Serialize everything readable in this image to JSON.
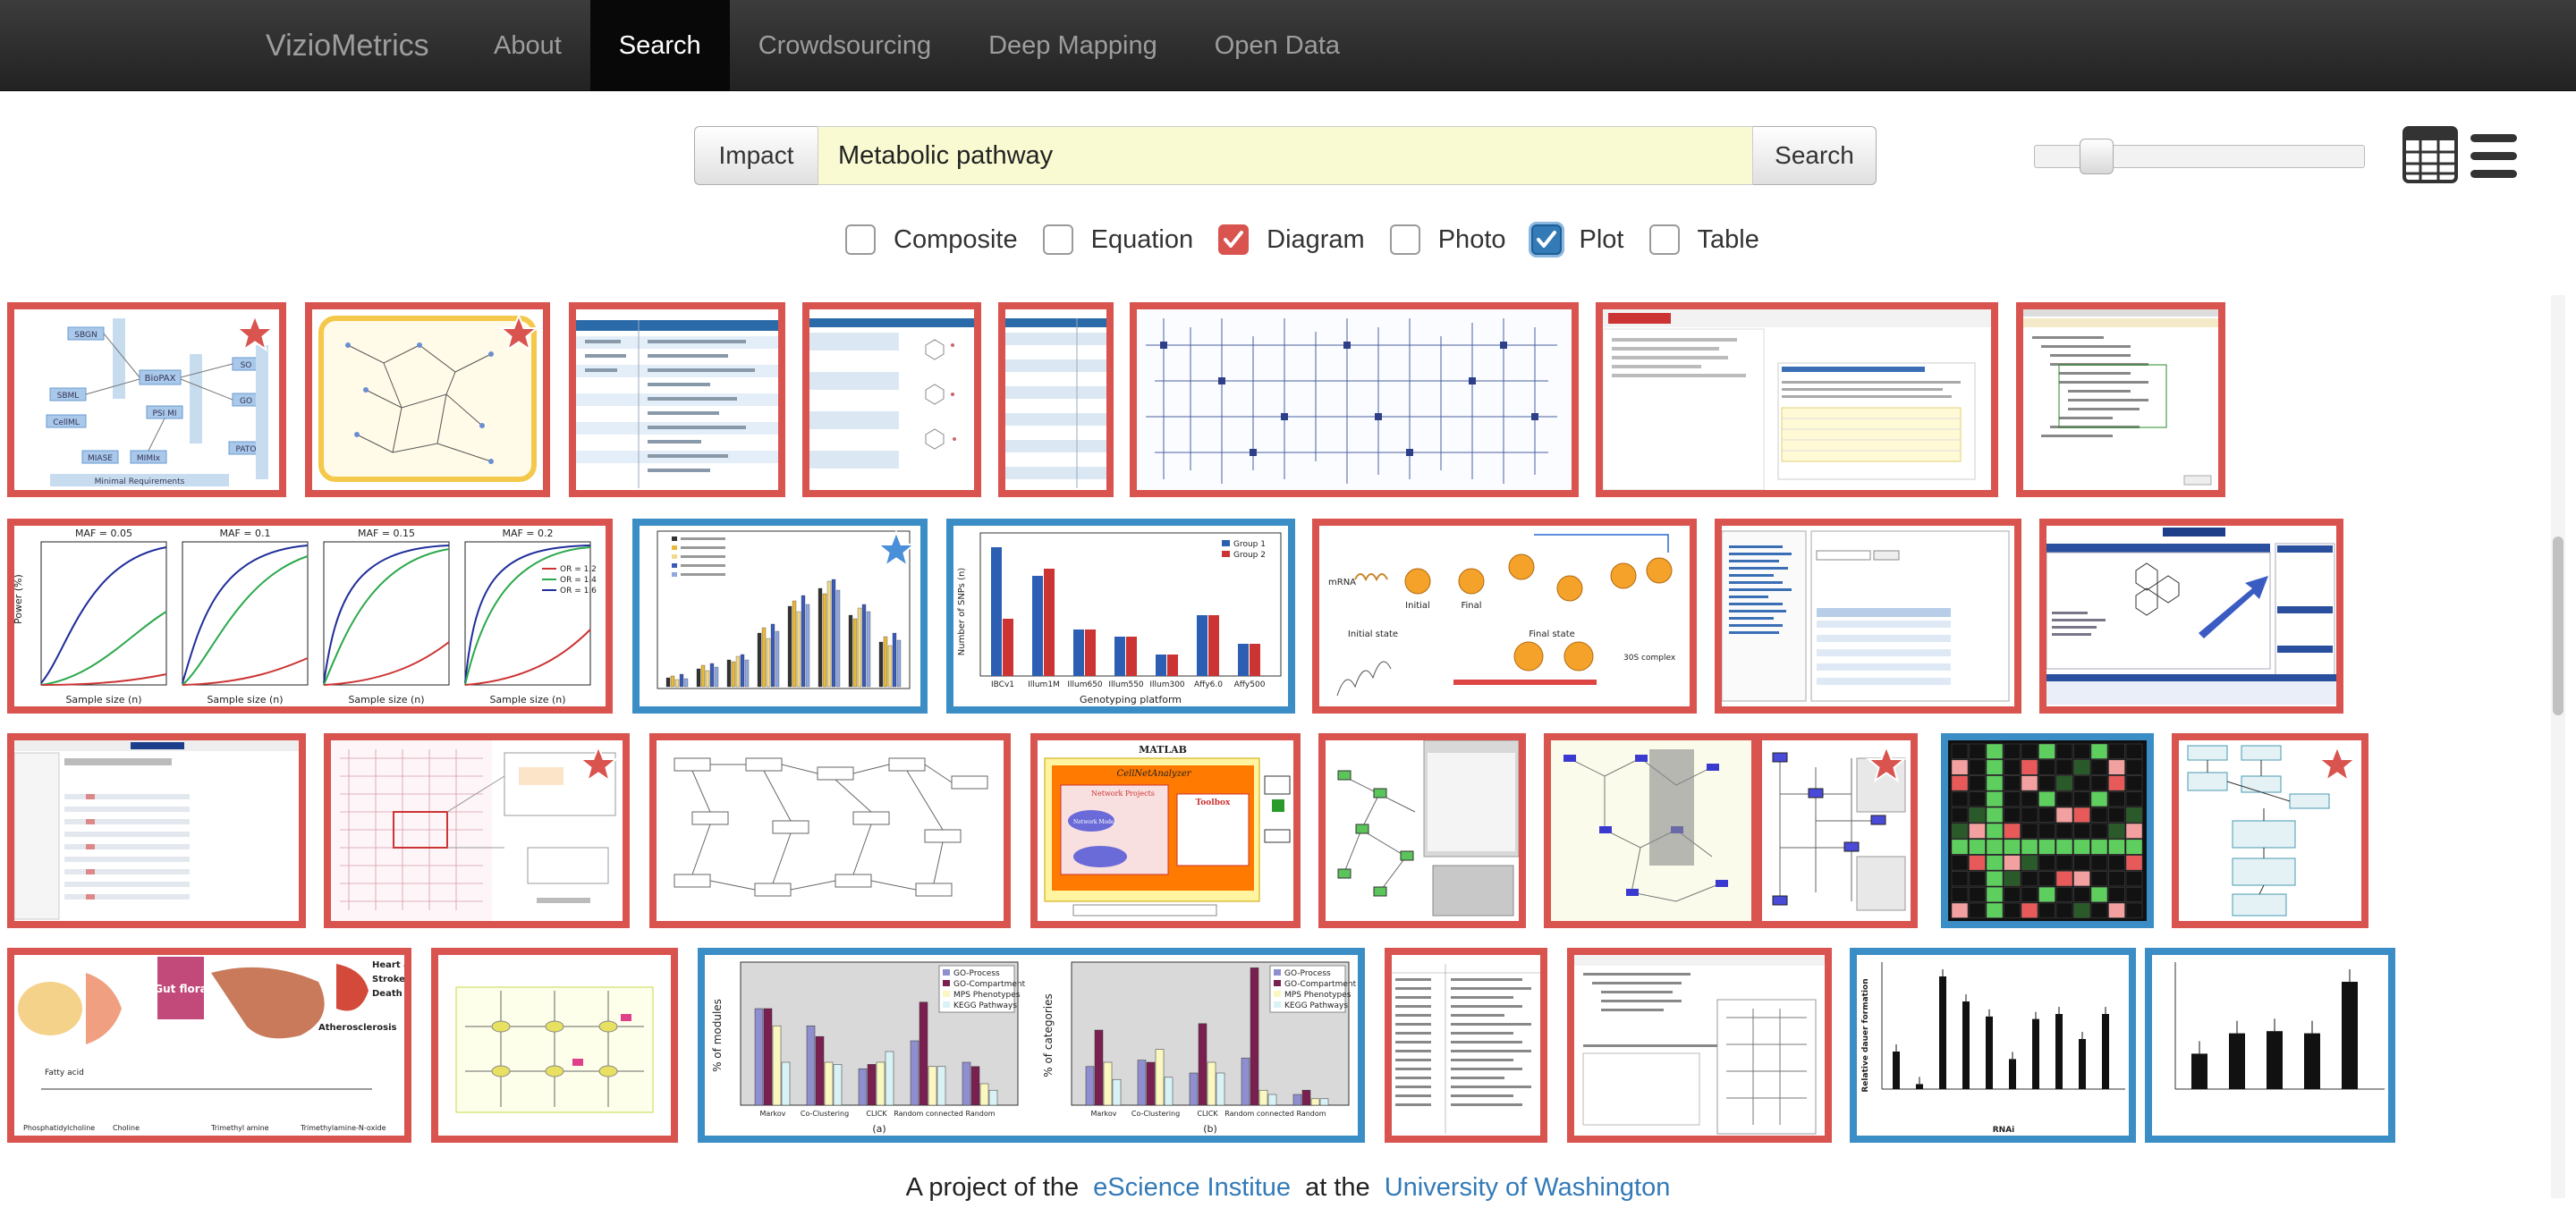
{
  "navbar": {
    "brand": "VizioMetrics",
    "items": [
      {
        "label": "About",
        "active": false
      },
      {
        "label": "Search",
        "active": true
      },
      {
        "label": "Crowdsourcing",
        "active": false
      },
      {
        "label": "Deep Mapping",
        "active": false
      },
      {
        "label": "Open Data",
        "active": false
      }
    ]
  },
  "search": {
    "impact_label": "Impact",
    "query": "Metabolic pathway",
    "search_label": "Search"
  },
  "size_slider": {
    "value": 0.15
  },
  "view_icons": [
    "grid-view-icon",
    "list-view-icon"
  ],
  "filters": [
    {
      "label": "Composite",
      "checked": false
    },
    {
      "label": "Equation",
      "checked": false
    },
    {
      "label": "Diagram",
      "checked": true,
      "color": "#d9534f"
    },
    {
      "label": "Photo",
      "checked": false
    },
    {
      "label": "Plot",
      "checked": true,
      "color": "#337ab7"
    },
    {
      "label": "Table",
      "checked": false
    }
  ],
  "colors": {
    "diagram": "#d9534f",
    "plot": "#3b8dc6",
    "star": "#d9534f",
    "star_blue": "#4a90d9"
  },
  "thumbnails": {
    "t1": {
      "labels": [
        "SBGN",
        "SBML",
        "CellML",
        "BioPAX",
        "PSI MI",
        "MIASE",
        "MIMIx",
        "SO",
        "GO",
        "PATO",
        "Minimal Requirements"
      ]
    },
    "t9": {
      "titles": [
        "MAF = 0.05",
        "MAF = 0.1",
        "MAF = 0.15",
        "MAF = 0.2"
      ],
      "ylabel": "Power (%)",
      "xlabel": "Sample size (n)",
      "legend": [
        "OR = 1.2",
        "OR = 1.4",
        "OR = 1.6"
      ]
    },
    "t11": {
      "ylabel": "Number of SNPs (n)",
      "xlabel": "Genotyping platform",
      "legend": [
        "Group 1",
        "Group 2"
      ],
      "categories": [
        "IBCv1",
        "Illum1M",
        "Illum650",
        "Illum550",
        "Illum300",
        "Affy6.0",
        "Affy500"
      ]
    },
    "t12": {
      "labels": [
        "mRNA",
        "Initial",
        "Final",
        "Initial state",
        "Final state",
        "30S complex"
      ]
    },
    "t15": {
      "labels": [
        "MATLAB",
        "CellNetAnalyzer",
        "Network Projects",
        "Toolbox",
        "Network Model"
      ]
    },
    "t20": {
      "labels": [
        "Gut flora",
        "Heart attack",
        "Stroke",
        "Death",
        "Atherosclerosis",
        "Fatty acid",
        "Phosphatidylcholine",
        "Choline",
        "Trimethyl amine",
        "Trimethylamine-N-oxide"
      ]
    },
    "t22": {
      "ylabel_a": "% of modules",
      "ylabel_b": "% of categories",
      "legend": [
        "GO-Process",
        "GO-Compartment",
        "MPS Phenotypes",
        "KEGG Pathways"
      ],
      "categories": [
        "Markov",
        "Co-Clustering",
        "CLICK",
        "Random connected",
        "Random"
      ],
      "caption_a": "(a)",
      "caption_b": "(b)"
    },
    "t25": {
      "ylabel": "Relative dauer formation",
      "xlabel": "RNAi"
    }
  },
  "footer": {
    "prefix": "A project of the",
    "link1": "eScience Institue",
    "middle": "at the",
    "link2": "University of Washington"
  }
}
